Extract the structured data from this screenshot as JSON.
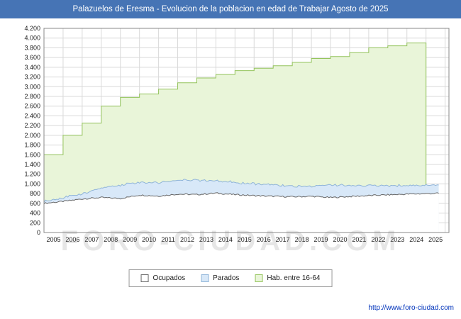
{
  "title_bar": {
    "text": "Palazuelos de Eresma - Evolucion de la poblacion en edad de Trabajar Agosto de 2025",
    "bg": "#4674b5",
    "fg": "#ffffff"
  },
  "watermark": "FORO-CIUDAD.COM",
  "footer": {
    "url": "http://www.foro-ciudad.com"
  },
  "legend": {
    "items": [
      {
        "id": "ocupados",
        "label": "Ocupados",
        "fill": "#ffffff",
        "stroke": "#666666"
      },
      {
        "id": "parados",
        "label": "Parados",
        "fill": "#d8e8f8",
        "stroke": "#8fb4d8"
      },
      {
        "id": "hab-16-64",
        "label": "Hab. entre 16-64",
        "fill": "#e9f5d9",
        "stroke": "#94c45c"
      }
    ]
  },
  "colors": {
    "grid": "#d9d9d9",
    "plot_border": "#888888",
    "axis_text": "#222222",
    "green_fill": "#e9f5d9",
    "green_line": "#94c45c",
    "blue_fill": "#d8e8f8",
    "blue_line": "#8fb4d8",
    "white_fill": "#ffffff",
    "dark_line": "#666666"
  },
  "chart_data": {
    "type": "area",
    "title": "Palazuelos de Eresma - Evolucion de la poblacion en edad de Trabajar Agosto de 2025",
    "xlabel": "",
    "ylabel": "",
    "ylim": [
      0,
      4200
    ],
    "ytick_step": 200,
    "grid": true,
    "legend_position": "bottom",
    "x_years": [
      2005,
      2006,
      2007,
      2008,
      2009,
      2010,
      2011,
      2012,
      2013,
      2014,
      2015,
      2016,
      2017,
      2018,
      2019,
      2020,
      2021,
      2022,
      2023,
      2024,
      2025
    ],
    "x_end_month": "2025-08",
    "series": [
      {
        "name": "Ocupados",
        "style": "monthly-area",
        "values": [
          600,
          640,
          690,
          720,
          700,
          770,
          750,
          790,
          780,
          810,
          780,
          760,
          745,
          735,
          745,
          720,
          740,
          760,
          775,
          790,
          800
        ]
      },
      {
        "name": "Parados",
        "style": "monthly-area-stacked-on-ocupados",
        "values": [
          50,
          70,
          110,
          190,
          280,
          270,
          280,
          290,
          300,
          260,
          250,
          240,
          230,
          215,
          200,
          260,
          230,
          205,
          190,
          180,
          175
        ]
      },
      {
        "name": "Hab. entre 16-64",
        "style": "annual-step-area",
        "last_year": 2024,
        "values": [
          1600,
          2000,
          2250,
          2600,
          2780,
          2850,
          2950,
          3080,
          3180,
          3250,
          3330,
          3380,
          3430,
          3500,
          3580,
          3620,
          3700,
          3800,
          3840,
          3900,
          3900
        ]
      }
    ]
  }
}
